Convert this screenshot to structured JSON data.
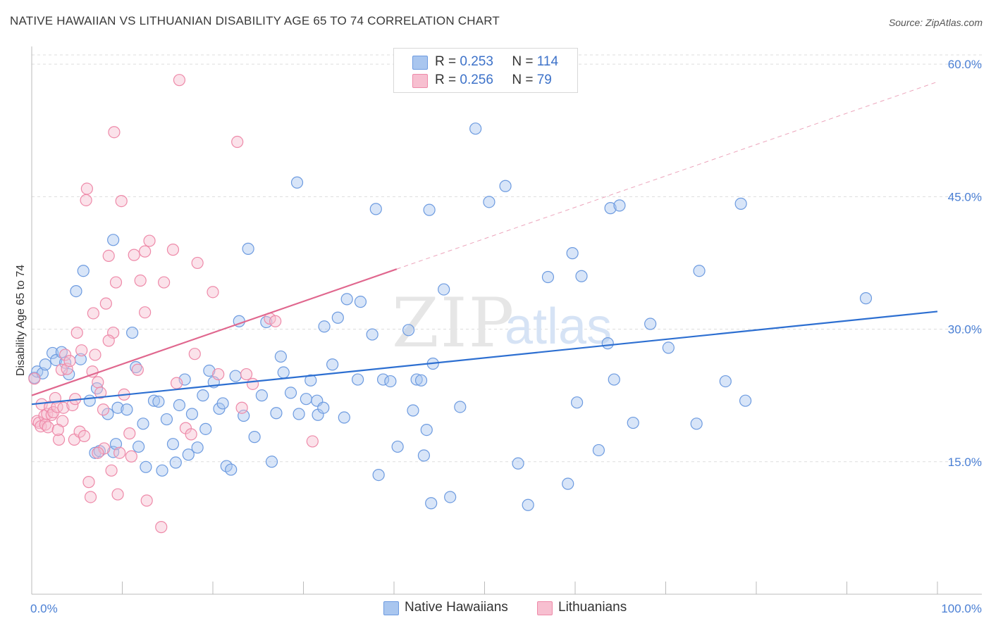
{
  "header": {
    "title": "NATIVE HAWAIIAN VS LITHUANIAN DISABILITY AGE 65 TO 74 CORRELATION CHART",
    "source": "Source: ZipAtlas.com"
  },
  "legend": {
    "rows": [
      {
        "r_label": "R =",
        "r_value": "0.253",
        "n_label": "N =",
        "n_value": "114"
      },
      {
        "r_label": "R =",
        "r_value": "0.256",
        "n_label": "N =",
        "n_value": "79"
      }
    ],
    "bottom": [
      "Native Hawaiians",
      "Lithuanians"
    ]
  },
  "watermark": {
    "zip": "ZIP",
    "atlas": "atlas"
  },
  "colors": {
    "blue_fill": "#a9c6ef",
    "blue_stroke": "#6d9be0",
    "blue_line": "#2d6fd1",
    "pink_fill": "#f7bfd0",
    "pink_stroke": "#ee8aa9",
    "pink_line": "#e0678e",
    "grid": "#dddddd",
    "tick_text": "#4a7fd4"
  },
  "chart_data": {
    "type": "scatter",
    "title": "NATIVE HAWAIIAN VS LITHUANIAN DISABILITY AGE 65 TO 74 CORRELATION CHART",
    "xlabel": "",
    "ylabel": "Disability Age 65 to 74",
    "xlim": [
      0,
      100
    ],
    "ylim": [
      0,
      62
    ],
    "x_tick_labels": [
      "0.0%",
      "100.0%"
    ],
    "y_ticks": [
      15,
      30,
      45,
      60
    ],
    "y_tick_labels": [
      "15.0%",
      "30.0%",
      "45.0%",
      "60.0%"
    ],
    "grid": true,
    "series": [
      {
        "name": "Native Hawaiians",
        "r": 0.253,
        "n": 114,
        "trend": {
          "x": [
            0,
            100
          ],
          "y": [
            21.5,
            32.0
          ],
          "dashed_extension": false
        },
        "points": [
          [
            0.3,
            24.5
          ],
          [
            0.6,
            25.2
          ],
          [
            1.2,
            25.0
          ],
          [
            1.5,
            26.0
          ],
          [
            2.3,
            27.3
          ],
          [
            2.7,
            26.5
          ],
          [
            3.3,
            27.4
          ],
          [
            3.7,
            26.2
          ],
          [
            4.1,
            24.9
          ],
          [
            5.4,
            26.6
          ],
          [
            5.7,
            36.6
          ],
          [
            4.9,
            34.3
          ],
          [
            6.4,
            21.9
          ],
          [
            7.2,
            23.3
          ],
          [
            7.0,
            16.0
          ],
          [
            7.5,
            16.2
          ],
          [
            8.4,
            20.4
          ],
          [
            9.0,
            16.1
          ],
          [
            9.3,
            17.0
          ],
          [
            9.5,
            21.1
          ],
          [
            10.5,
            20.9
          ],
          [
            11.1,
            29.6
          ],
          [
            11.5,
            25.7
          ],
          [
            9.0,
            40.1
          ],
          [
            11.8,
            16.7
          ],
          [
            12.3,
            19.3
          ],
          [
            12.6,
            14.4
          ],
          [
            13.5,
            21.9
          ],
          [
            14.0,
            21.8
          ],
          [
            14.4,
            14.0
          ],
          [
            14.9,
            19.8
          ],
          [
            15.6,
            17.0
          ],
          [
            15.9,
            14.9
          ],
          [
            16.3,
            21.4
          ],
          [
            16.9,
            24.3
          ],
          [
            17.3,
            15.8
          ],
          [
            17.7,
            20.4
          ],
          [
            18.3,
            16.6
          ],
          [
            18.9,
            22.5
          ],
          [
            19.2,
            18.7
          ],
          [
            19.6,
            25.3
          ],
          [
            20.1,
            24.0
          ],
          [
            20.7,
            21.0
          ],
          [
            21.1,
            21.6
          ],
          [
            21.5,
            14.5
          ],
          [
            22.0,
            14.1
          ],
          [
            22.5,
            24.7
          ],
          [
            22.9,
            30.9
          ],
          [
            23.4,
            20.2
          ],
          [
            23.9,
            39.1
          ],
          [
            24.6,
            17.8
          ],
          [
            25.4,
            22.5
          ],
          [
            25.9,
            30.8
          ],
          [
            26.5,
            15.0
          ],
          [
            27.0,
            20.5
          ],
          [
            27.5,
            26.9
          ],
          [
            27.8,
            25.1
          ],
          [
            28.6,
            22.8
          ],
          [
            29.3,
            46.6
          ],
          [
            29.5,
            20.4
          ],
          [
            30.3,
            22.1
          ],
          [
            30.8,
            24.2
          ],
          [
            31.5,
            21.9
          ],
          [
            31.6,
            20.3
          ],
          [
            32.2,
            21.1
          ],
          [
            32.3,
            30.3
          ],
          [
            33.2,
            26.0
          ],
          [
            33.8,
            31.3
          ],
          [
            34.5,
            20.0
          ],
          [
            34.8,
            33.4
          ],
          [
            36.0,
            24.3
          ],
          [
            36.3,
            33.1
          ],
          [
            37.6,
            29.4
          ],
          [
            38.0,
            43.6
          ],
          [
            38.3,
            13.5
          ],
          [
            38.8,
            24.3
          ],
          [
            39.6,
            24.1
          ],
          [
            40.4,
            16.7
          ],
          [
            41.6,
            29.9
          ],
          [
            42.1,
            20.8
          ],
          [
            42.5,
            24.3
          ],
          [
            43.0,
            24.2
          ],
          [
            43.3,
            15.7
          ],
          [
            43.6,
            18.6
          ],
          [
            43.9,
            43.5
          ],
          [
            44.1,
            10.3
          ],
          [
            44.3,
            26.1
          ],
          [
            45.5,
            34.5
          ],
          [
            46.2,
            11.0
          ],
          [
            47.3,
            21.2
          ],
          [
            49.0,
            52.7
          ],
          [
            50.5,
            44.4
          ],
          [
            52.3,
            46.2
          ],
          [
            53.7,
            14.8
          ],
          [
            54.8,
            10.1
          ],
          [
            57.0,
            35.9
          ],
          [
            59.2,
            12.5
          ],
          [
            59.7,
            38.6
          ],
          [
            60.2,
            21.7
          ],
          [
            60.7,
            36.0
          ],
          [
            62.6,
            16.3
          ],
          [
            63.6,
            28.4
          ],
          [
            63.9,
            43.7
          ],
          [
            64.3,
            24.3
          ],
          [
            64.9,
            44.0
          ],
          [
            66.4,
            19.4
          ],
          [
            68.3,
            30.6
          ],
          [
            70.3,
            27.9
          ],
          [
            73.4,
            19.3
          ],
          [
            73.7,
            36.6
          ],
          [
            76.6,
            24.1
          ],
          [
            78.3,
            44.2
          ],
          [
            78.8,
            21.9
          ],
          [
            92.1,
            33.5
          ]
        ]
      },
      {
        "name": "Lithuanians",
        "r": 0.256,
        "n": 79,
        "trend": {
          "x": [
            0,
            40.3
          ],
          "y": [
            22.5,
            36.8
          ],
          "dashed_to": [
            100,
            58.0
          ]
        },
        "points": [
          [
            0.3,
            24.4
          ],
          [
            0.6,
            19.6
          ],
          [
            0.8,
            19.4
          ],
          [
            1.0,
            19.0
          ],
          [
            1.1,
            21.5
          ],
          [
            1.4,
            20.2
          ],
          [
            1.5,
            19.2
          ],
          [
            1.7,
            20.4
          ],
          [
            1.8,
            18.9
          ],
          [
            2.0,
            21.2
          ],
          [
            2.2,
            20.3
          ],
          [
            2.4,
            20.6
          ],
          [
            2.6,
            22.2
          ],
          [
            2.8,
            21.2
          ],
          [
            3.0,
            17.5
          ],
          [
            3.3,
            25.4
          ],
          [
            3.4,
            19.6
          ],
          [
            3.5,
            21.1
          ],
          [
            3.7,
            27.1
          ],
          [
            3.9,
            25.5
          ],
          [
            4.2,
            26.4
          ],
          [
            4.5,
            21.4
          ],
          [
            4.7,
            17.5
          ],
          [
            4.8,
            22.1
          ],
          [
            5.0,
            29.6
          ],
          [
            5.3,
            18.4
          ],
          [
            5.5,
            27.6
          ],
          [
            5.8,
            17.9
          ],
          [
            6.0,
            44.6
          ],
          [
            6.1,
            45.9
          ],
          [
            6.3,
            12.7
          ],
          [
            6.5,
            11.0
          ],
          [
            6.7,
            25.2
          ],
          [
            6.8,
            31.8
          ],
          [
            7.0,
            27.1
          ],
          [
            7.3,
            24.0
          ],
          [
            7.6,
            22.8
          ],
          [
            7.9,
            20.9
          ],
          [
            8.0,
            16.5
          ],
          [
            8.2,
            32.9
          ],
          [
            8.5,
            38.3
          ],
          [
            8.8,
            14.0
          ],
          [
            9.0,
            29.6
          ],
          [
            9.1,
            52.3
          ],
          [
            9.3,
            35.3
          ],
          [
            9.5,
            11.3
          ],
          [
            9.7,
            16.0
          ],
          [
            9.9,
            44.5
          ],
          [
            10.2,
            22.6
          ],
          [
            10.8,
            18.2
          ],
          [
            11.0,
            15.6
          ],
          [
            11.3,
            38.4
          ],
          [
            11.7,
            25.4
          ],
          [
            12.0,
            35.5
          ],
          [
            12.5,
            31.9
          ],
          [
            12.7,
            10.6
          ],
          [
            13.0,
            40.0
          ],
          [
            14.3,
            7.6
          ],
          [
            14.6,
            35.3
          ],
          [
            15.6,
            39.0
          ],
          [
            16.0,
            23.9
          ],
          [
            17.0,
            18.8
          ],
          [
            17.6,
            18.1
          ],
          [
            18.0,
            27.2
          ],
          [
            18.3,
            37.5
          ],
          [
            20.0,
            34.2
          ],
          [
            20.6,
            24.9
          ],
          [
            22.7,
            51.2
          ],
          [
            23.2,
            21.1
          ],
          [
            23.7,
            24.9
          ],
          [
            24.4,
            23.8
          ],
          [
            26.3,
            31.2
          ],
          [
            26.9,
            30.9
          ],
          [
            31.0,
            17.3
          ],
          [
            16.3,
            58.2
          ],
          [
            12.5,
            38.8
          ],
          [
            7.3,
            16.0
          ],
          [
            8.5,
            28.7
          ],
          [
            2.9,
            18.6
          ]
        ]
      }
    ]
  }
}
